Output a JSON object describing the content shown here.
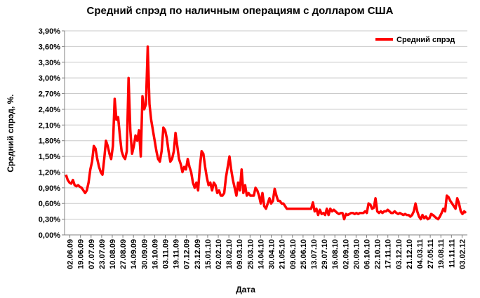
{
  "chart_data": {
    "type": "line",
    "title": "Средний спрэд по наличным операциям с долларом США",
    "xlabel": "Дата",
    "ylabel": "Средний спрэд, %.",
    "ylim": [
      0,
      3.9
    ],
    "yticks": [
      "0,00%",
      "0,30%",
      "0,60%",
      "0,90%",
      "1,20%",
      "1,50%",
      "1,80%",
      "2,10%",
      "2,40%",
      "2,70%",
      "3,00%",
      "3,30%",
      "3,60%",
      "3,90%"
    ],
    "xticks": [
      "02.06.09",
      "19.06.09",
      "07.07.09",
      "23.07.09",
      "10.08.09",
      "27.08.09",
      "14.09.09",
      "30.09.09",
      "16.10.09",
      "03.11.09",
      "19.11.09",
      "07.12.09",
      "23.12.09",
      "15.01.10",
      "02.02.10",
      "18.02.10",
      "09.03.10",
      "25.03.10",
      "14.04.10",
      "30.04.10",
      "21.05.10",
      "09.06.10",
      "25.06.10",
      "13.07.10",
      "29.07.10",
      "16.08.10",
      "02.09.10",
      "20.09.10",
      "06.10.10",
      "22.10.10",
      "17.11.10",
      "03.12.10",
      "21.12.10",
      "04.03.11",
      "27.05.11",
      "19.08.11",
      "11.11.11",
      "03.02.12"
    ],
    "grid": true,
    "legend_position": "top-right",
    "series": [
      {
        "name": "Средний спрэд",
        "color": "#ff0000",
        "values": [
          1.15,
          1.05,
          1.0,
          0.98,
          1.05,
          0.95,
          0.93,
          0.95,
          0.92,
          0.9,
          0.85,
          0.8,
          0.85,
          1.0,
          1.25,
          1.4,
          1.7,
          1.65,
          1.45,
          1.3,
          1.2,
          1.15,
          1.45,
          1.8,
          1.7,
          1.55,
          1.45,
          1.7,
          2.6,
          2.2,
          2.25,
          1.9,
          1.6,
          1.5,
          1.45,
          1.6,
          3.0,
          2.0,
          1.55,
          1.7,
          1.9,
          1.8,
          2.0,
          1.5,
          2.65,
          2.4,
          2.5,
          3.6,
          2.5,
          2.2,
          2.0,
          1.8,
          1.6,
          1.45,
          1.4,
          1.6,
          2.05,
          2.0,
          1.85,
          1.6,
          1.4,
          1.45,
          1.6,
          1.95,
          1.7,
          1.45,
          1.35,
          1.2,
          1.3,
          1.25,
          1.45,
          1.3,
          1.2,
          1.0,
          0.9,
          1.0,
          0.85,
          1.3,
          1.6,
          1.55,
          1.3,
          1.1,
          0.95,
          1.0,
          0.85,
          1.0,
          0.95,
          0.8,
          0.85,
          0.75,
          0.75,
          0.8,
          1.1,
          1.3,
          1.5,
          1.25,
          1.05,
          0.9,
          0.75,
          1.0,
          0.85,
          1.25,
          0.8,
          0.95,
          0.75,
          0.8,
          0.75,
          0.75,
          0.75,
          0.9,
          0.85,
          0.75,
          0.6,
          0.8,
          0.55,
          0.5,
          0.6,
          0.7,
          0.6,
          0.65,
          0.88,
          0.75,
          0.65,
          0.65,
          0.6,
          0.6,
          0.55,
          0.5,
          0.5,
          0.5,
          0.5,
          0.5,
          0.5,
          0.5,
          0.5,
          0.5,
          0.5,
          0.5,
          0.5,
          0.5,
          0.5,
          0.5,
          0.62,
          0.45,
          0.5,
          0.38,
          0.48,
          0.4,
          0.42,
          0.38,
          0.5,
          0.38,
          0.5,
          0.45,
          0.48,
          0.45,
          0.42,
          0.4,
          0.42,
          0.42,
          0.3,
          0.4,
          0.38,
          0.4,
          0.42,
          0.42,
          0.4,
          0.42,
          0.4,
          0.42,
          0.42,
          0.42,
          0.45,
          0.42,
          0.6,
          0.58,
          0.5,
          0.52,
          0.7,
          0.45,
          0.42,
          0.45,
          0.42,
          0.45,
          0.45,
          0.48,
          0.45,
          0.42,
          0.42,
          0.45,
          0.42,
          0.4,
          0.42,
          0.4,
          0.38,
          0.4,
          0.38,
          0.38,
          0.35,
          0.38,
          0.45,
          0.6,
          0.45,
          0.35,
          0.3,
          0.38,
          0.32,
          0.35,
          0.3,
          0.32,
          0.4,
          0.38,
          0.35,
          0.32,
          0.3,
          0.35,
          0.42,
          0.5,
          0.45,
          0.75,
          0.72,
          0.65,
          0.6,
          0.55,
          0.5,
          0.7,
          0.6,
          0.45,
          0.4,
          0.45,
          0.42
        ]
      }
    ]
  }
}
